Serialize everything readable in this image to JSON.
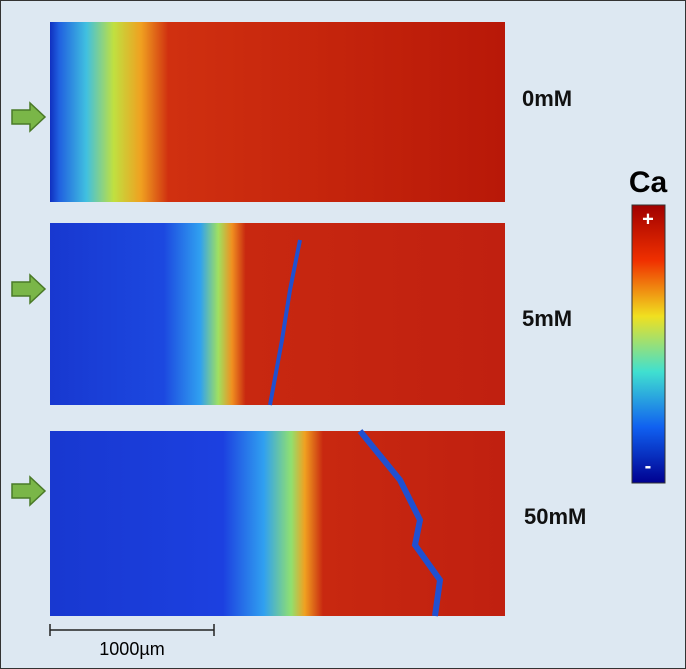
{
  "panels": [
    {
      "label": "0mM"
    },
    {
      "label": "5mM"
    },
    {
      "label": "50mM"
    }
  ],
  "colorbar": {
    "title": "Ca",
    "max_label": "+",
    "min_label": "-"
  },
  "scale_bar": {
    "label": "1000µm"
  }
}
